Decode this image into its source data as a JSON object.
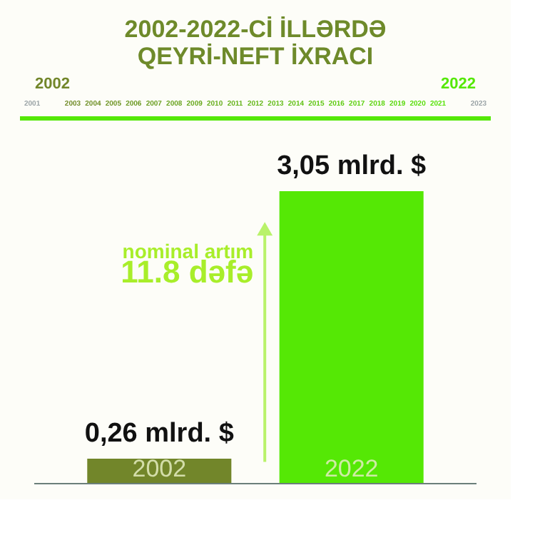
{
  "chart_data": {
    "type": "bar",
    "title": "2002-2022-Cİ İLLƏRDƏ\nQEYRİ-NEFT İXRACI",
    "categories": [
      "2002",
      "2022"
    ],
    "values": [
      0.26,
      3.05
    ],
    "colors": [
      "#72862a",
      "#55e805"
    ],
    "value_labels": [
      "0,26 mlrd. $",
      "3,05 mlrd. $"
    ],
    "annotations": [
      "2001",
      "2002",
      "2003",
      "2004",
      "2005",
      "2006",
      "2007",
      "2008",
      "2009",
      "2010",
      "2011",
      "2012",
      "2013",
      "2014",
      "2015",
      "2016",
      "2017",
      "2018",
      "2019",
      "2020",
      "2021",
      "2022",
      "2023",
      "nominal artım\n11.8 dəfə"
    ]
  }
}
